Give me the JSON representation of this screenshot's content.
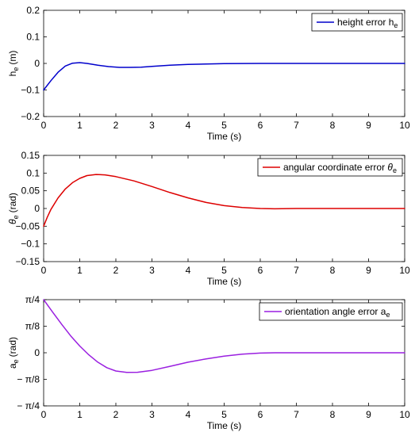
{
  "chart_data": [
    {
      "type": "line",
      "xlabel": "Time (s)",
      "ylabel": "h",
      "ylabel_sub": "e",
      "ylabel_unit": "(m)",
      "xlim": [
        0,
        10
      ],
      "ylim": [
        -0.2,
        0.2
      ],
      "xticks": [
        0,
        1,
        2,
        3,
        4,
        5,
        6,
        7,
        8,
        9,
        10
      ],
      "yticks": [
        -0.2,
        -0.1,
        0,
        0.1,
        0.2
      ],
      "ytick_labels": [
        "-0.2",
        "-0.1",
        "0",
        "0.1",
        "0.2"
      ],
      "grid": false,
      "legend_position": "top-right",
      "series": [
        {
          "name": "height error h",
          "name_sub": "e",
          "color": "#0000cc",
          "x": [
            0,
            0.2,
            0.4,
            0.6,
            0.8,
            1.0,
            1.2,
            1.5,
            1.8,
            2.1,
            2.4,
            2.7,
            3.0,
            3.5,
            4.0,
            4.5,
            5.0,
            6.0,
            7.0,
            8.0,
            9.0,
            10.0
          ],
          "y": [
            -0.1,
            -0.065,
            -0.033,
            -0.01,
            0.001,
            0.003,
            0.0,
            -0.007,
            -0.012,
            -0.015,
            -0.015,
            -0.014,
            -0.011,
            -0.007,
            -0.004,
            -0.002,
            -0.001,
            0,
            0,
            0,
            0,
            0
          ]
        }
      ]
    },
    {
      "type": "line",
      "xlabel": "Time (s)",
      "ylabel": "θ",
      "ylabel_sub": "e",
      "ylabel_unit": "(rad)",
      "xlim": [
        0,
        10
      ],
      "ylim": [
        -0.15,
        0.15
      ],
      "xticks": [
        0,
        1,
        2,
        3,
        4,
        5,
        6,
        7,
        8,
        9,
        10
      ],
      "yticks": [
        -0.15,
        -0.1,
        -0.05,
        0,
        0.05,
        0.1,
        0.15
      ],
      "ytick_labels": [
        "-0.15",
        "-0.1",
        "-0.05",
        "0",
        "0.05",
        "0.1",
        "0.15"
      ],
      "grid": false,
      "legend_position": "top-right",
      "series": [
        {
          "name": "angular coordinate error θ",
          "name_sub": "e",
          "color": "#dd0000",
          "x": [
            0,
            0.1,
            0.2,
            0.4,
            0.6,
            0.8,
            1.0,
            1.2,
            1.45,
            1.7,
            2.0,
            2.5,
            3.0,
            3.5,
            4.0,
            4.5,
            5.0,
            5.5,
            6.0,
            6.4,
            7.0,
            8.0,
            9.0,
            10.0
          ],
          "y": [
            -0.05,
            -0.025,
            -0.003,
            0.03,
            0.055,
            0.073,
            0.085,
            0.093,
            0.096,
            0.095,
            0.09,
            0.078,
            0.062,
            0.045,
            0.03,
            0.017,
            0.008,
            0.003,
            0.0,
            -0.001,
            0,
            0,
            0,
            0
          ]
        }
      ]
    },
    {
      "type": "line",
      "xlabel": "Time (s)",
      "ylabel": "a",
      "ylabel_sub": "e",
      "ylabel_unit": "(rad)",
      "xlim": [
        0,
        10
      ],
      "ylim": [
        -0.7854,
        0.7854
      ],
      "xticks": [
        0,
        1,
        2,
        3,
        4,
        5,
        6,
        7,
        8,
        9,
        10
      ],
      "yticks": [
        -0.7854,
        -0.3927,
        0,
        0.3927,
        0.7854
      ],
      "ytick_labels": [
        "- π/4",
        "- π/8",
        "0",
        "π/8",
        "π/4"
      ],
      "grid": false,
      "legend_position": "top-right",
      "series": [
        {
          "name": "orientation angle error a",
          "name_sub": "e",
          "color": "#9a1fe0",
          "x": [
            0,
            0.25,
            0.5,
            0.75,
            1.0,
            1.25,
            1.5,
            1.75,
            2.0,
            2.3,
            2.6,
            3.0,
            3.5,
            4.0,
            4.5,
            5.0,
            5.5,
            6.0,
            6.4,
            7.0,
            8.0,
            9.0,
            10.0
          ],
          "y": [
            0.7854,
            0.6,
            0.42,
            0.25,
            0.1,
            -0.03,
            -0.14,
            -0.22,
            -0.27,
            -0.29,
            -0.288,
            -0.26,
            -0.2,
            -0.14,
            -0.09,
            -0.05,
            -0.02,
            -0.005,
            0.0,
            0,
            0,
            0,
            0
          ]
        }
      ]
    }
  ]
}
